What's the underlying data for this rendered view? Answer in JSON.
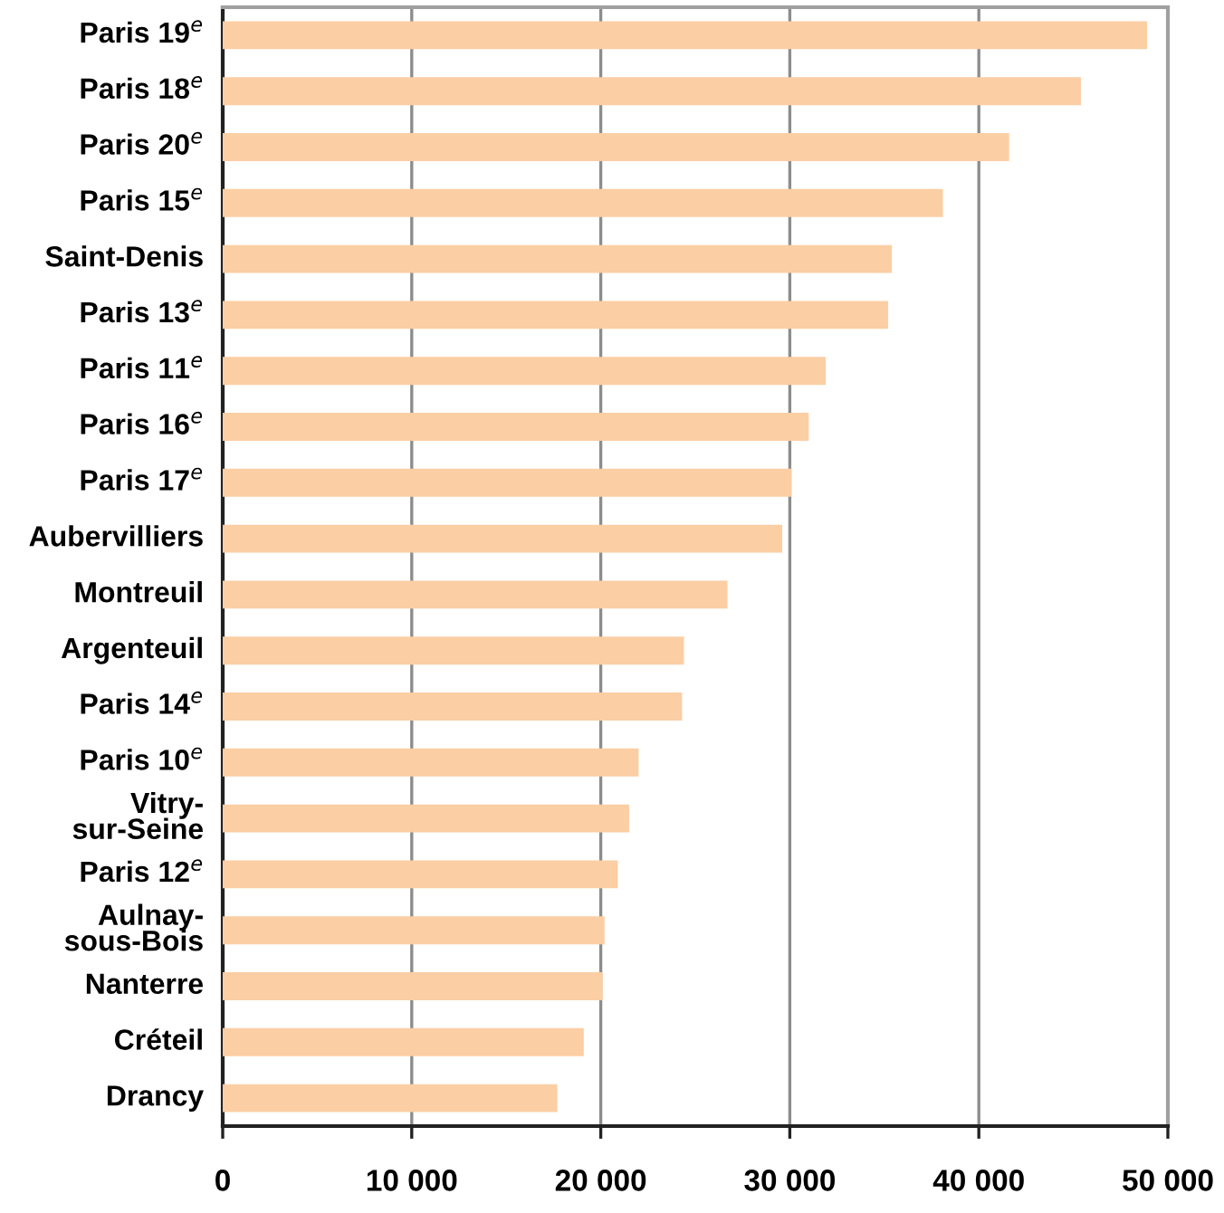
{
  "chart_data": {
    "type": "bar",
    "orientation": "horizontal",
    "categories": [
      "Paris 19$^{e}$",
      "Paris 18$^{e}$",
      "Paris 20$^{e}$",
      "Paris 15$^{e}$",
      "Saint-Denis",
      "Paris 13$^{e}$",
      "Paris 11$^{e}$",
      "Paris 16$^{e}$",
      "Paris 17$^{e}$",
      "Aubervilliers",
      "Montreuil",
      "Argenteuil",
      "Paris 14$^{e}$",
      "Paris 10$^{e}$",
      "Vitry-\nsur-Seine",
      "Paris 12$^{e}$",
      "Aulnay-\nsous-Bois",
      "Nanterre",
      "Créteil",
      "Drancy"
    ],
    "values": [
      48900,
      45400,
      41600,
      38100,
      35400,
      35200,
      31900,
      31000,
      30100,
      29600,
      26700,
      24400,
      24300,
      22000,
      21500,
      20900,
      20200,
      20100,
      19100,
      17700
    ],
    "color": "#fbcea4",
    "xlim": [
      0,
      50000
    ],
    "xticks": [
      0,
      {
        "value": 10000,
        "label": "10 000"
      },
      {
        "value": 20000,
        "label": "20 000"
      },
      {
        "value": 30000,
        "label": "30 000"
      },
      {
        "value": 40000,
        "label": "40 000"
      },
      {
        "value": 50000,
        "label": "50 000"
      }
    ],
    "grid": "x"
  }
}
